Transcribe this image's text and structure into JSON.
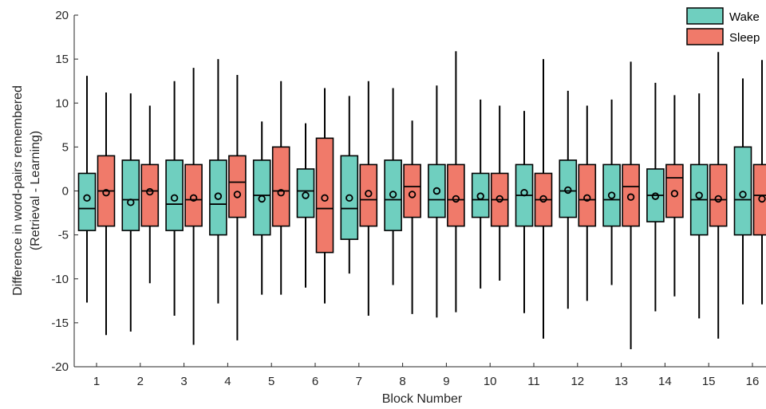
{
  "chart_data": {
    "type": "boxplot",
    "xlabel": "Block Number",
    "ylabel_line1": "Difference in word-pairs remembered",
    "ylabel_line2": "(Retrieval - Learning)",
    "ylim": [
      -20,
      20
    ],
    "yticks": [
      -20,
      -15,
      -10,
      -5,
      0,
      5,
      10,
      15,
      20
    ],
    "categories": [
      "1",
      "2",
      "3",
      "4",
      "5",
      "6",
      "7",
      "8",
      "9",
      "10",
      "11",
      "12",
      "13",
      "14",
      "15",
      "16"
    ],
    "grid": false,
    "legend_position": "top-right",
    "series": [
      {
        "name": "Wake",
        "color": "#6fcfbf",
        "boxes": [
          {
            "whisker_low": -12.7,
            "q1": -4.5,
            "median": -2.0,
            "q3": 2.0,
            "whisker_high": 13.1,
            "mean": -0.8
          },
          {
            "whisker_low": -16.0,
            "q1": -4.5,
            "median": -1.0,
            "q3": 3.5,
            "whisker_high": 11.1,
            "mean": -1.3
          },
          {
            "whisker_low": -14.2,
            "q1": -4.5,
            "median": -1.5,
            "q3": 3.5,
            "whisker_high": 12.5,
            "mean": -0.8
          },
          {
            "whisker_low": -12.8,
            "q1": -5.0,
            "median": -1.5,
            "q3": 3.5,
            "whisker_high": 15.0,
            "mean": -0.6
          },
          {
            "whisker_low": -11.8,
            "q1": -5.0,
            "median": -0.5,
            "q3": 3.5,
            "whisker_high": 7.9,
            "mean": -0.9
          },
          {
            "whisker_low": -11.0,
            "q1": -3.0,
            "median": 0.0,
            "q3": 2.5,
            "whisker_high": 7.7,
            "mean": -0.5
          },
          {
            "whisker_low": -9.4,
            "q1": -5.5,
            "median": -2.0,
            "q3": 4.0,
            "whisker_high": 10.8,
            "mean": -0.8
          },
          {
            "whisker_low": -10.7,
            "q1": -4.5,
            "median": -1.0,
            "q3": 3.5,
            "whisker_high": 11.7,
            "mean": -0.4
          },
          {
            "whisker_low": -14.4,
            "q1": -3.0,
            "median": -1.0,
            "q3": 3.0,
            "whisker_high": 12.0,
            "mean": 0.0
          },
          {
            "whisker_low": -11.1,
            "q1": -3.0,
            "median": -1.0,
            "q3": 2.0,
            "whisker_high": 10.4,
            "mean": -0.6
          },
          {
            "whisker_low": -13.9,
            "q1": -4.0,
            "median": -0.5,
            "q3": 3.0,
            "whisker_high": 9.1,
            "mean": -0.2
          },
          {
            "whisker_low": -13.4,
            "q1": -3.0,
            "median": 0.0,
            "q3": 3.5,
            "whisker_high": 11.4,
            "mean": 0.1
          },
          {
            "whisker_low": -10.7,
            "q1": -4.0,
            "median": -1.0,
            "q3": 3.0,
            "whisker_high": 10.4,
            "mean": -0.5
          },
          {
            "whisker_low": -13.7,
            "q1": -3.5,
            "median": -0.5,
            "q3": 2.5,
            "whisker_high": 12.3,
            "mean": -0.6
          },
          {
            "whisker_low": -14.5,
            "q1": -5.0,
            "median": -1.0,
            "q3": 3.0,
            "whisker_high": 11.1,
            "mean": -0.5
          },
          {
            "whisker_low": -12.9,
            "q1": -5.0,
            "median": -1.0,
            "q3": 5.0,
            "whisker_high": 12.8,
            "mean": -0.4
          }
        ]
      },
      {
        "name": "Sleep",
        "color": "#f07a6a",
        "boxes": [
          {
            "whisker_low": -16.4,
            "q1": -4.0,
            "median": 0.0,
            "q3": 4.0,
            "whisker_high": 11.2,
            "mean": -0.2
          },
          {
            "whisker_low": -10.5,
            "q1": -4.0,
            "median": 0.0,
            "q3": 3.0,
            "whisker_high": 9.7,
            "mean": -0.1
          },
          {
            "whisker_low": -17.5,
            "q1": -4.0,
            "median": -1.0,
            "q3": 3.0,
            "whisker_high": 14.0,
            "mean": -0.8
          },
          {
            "whisker_low": -17.0,
            "q1": -3.0,
            "median": 1.0,
            "q3": 4.0,
            "whisker_high": 13.2,
            "mean": -0.4
          },
          {
            "whisker_low": -11.8,
            "q1": -4.0,
            "median": 0.0,
            "q3": 5.0,
            "whisker_high": 12.5,
            "mean": -0.2
          },
          {
            "whisker_low": -12.8,
            "q1": -7.0,
            "median": -2.0,
            "q3": 6.0,
            "whisker_high": 11.7,
            "mean": -0.8
          },
          {
            "whisker_low": -14.2,
            "q1": -4.0,
            "median": -1.0,
            "q3": 3.0,
            "whisker_high": 12.5,
            "mean": -0.3
          },
          {
            "whisker_low": -14.0,
            "q1": -3.0,
            "median": 0.5,
            "q3": 3.0,
            "whisker_high": 8.0,
            "mean": -0.4
          },
          {
            "whisker_low": -13.8,
            "q1": -4.0,
            "median": -1.0,
            "q3": 3.0,
            "whisker_high": 15.9,
            "mean": -0.9
          },
          {
            "whisker_low": -10.2,
            "q1": -4.0,
            "median": -1.0,
            "q3": 2.0,
            "whisker_high": 9.7,
            "mean": -0.9
          },
          {
            "whisker_low": -16.8,
            "q1": -4.0,
            "median": -1.0,
            "q3": 2.0,
            "whisker_high": 15.0,
            "mean": -0.9
          },
          {
            "whisker_low": -12.5,
            "q1": -4.0,
            "median": -1.0,
            "q3": 3.0,
            "whisker_high": 9.7,
            "mean": -0.8
          },
          {
            "whisker_low": -18.0,
            "q1": -4.0,
            "median": 0.5,
            "q3": 3.0,
            "whisker_high": 14.7,
            "mean": -0.7
          },
          {
            "whisker_low": -12.0,
            "q1": -3.0,
            "median": 1.5,
            "q3": 3.0,
            "whisker_high": 10.9,
            "mean": -0.3
          },
          {
            "whisker_low": -16.8,
            "q1": -4.0,
            "median": -1.0,
            "q3": 3.0,
            "whisker_high": 15.8,
            "mean": -0.9
          },
          {
            "whisker_low": -12.9,
            "q1": -5.0,
            "median": -0.5,
            "q3": 3.0,
            "whisker_high": 14.9,
            "mean": -0.9
          }
        ]
      }
    ]
  }
}
